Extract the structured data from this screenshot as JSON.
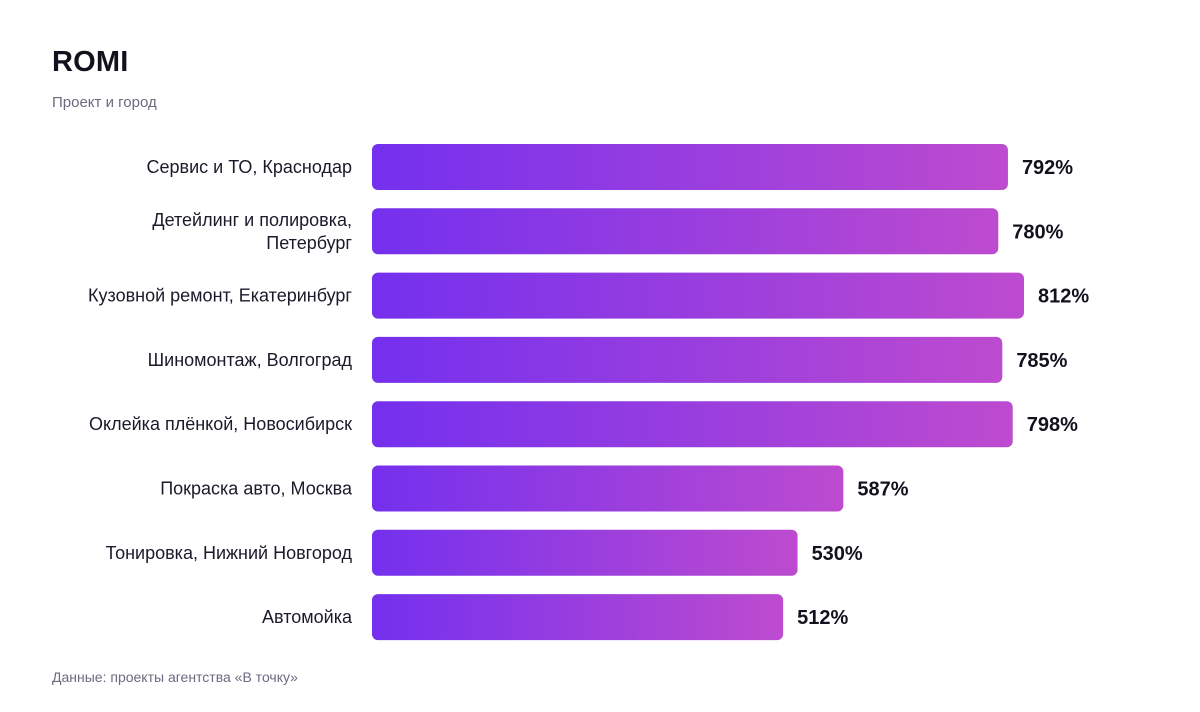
{
  "chart_data": {
    "type": "bar",
    "orientation": "horizontal",
    "title": "ROMI",
    "subtitle": "Проект и город",
    "source": "Данные: проекты агентства «В точку»",
    "categories": [
      "Сервис и ТО, Краснодар",
      "Детейлинг и полировка, Петербург",
      "Кузовной ремонт, Екатеринбург",
      "Шиномонтаж, Волгоград",
      "Оклейка плёнкой, Новосибирск",
      "Покраска авто, Москва",
      "Тонировка, Нижний Новгород",
      "Автомойка"
    ],
    "category_lines": [
      [
        "Сервис и ТО, Краснодар"
      ],
      [
        "Детейлинг и полировка,",
        "Петербург"
      ],
      [
        "Кузовной ремонт, Екатеринбург"
      ],
      [
        "Шиномонтаж, Волгоград"
      ],
      [
        "Оклейка плёнкой, Новосибирск"
      ],
      [
        "Покраска авто, Москва"
      ],
      [
        "Тонировка, Нижний Новгород"
      ],
      [
        "Автомойка"
      ]
    ],
    "values": [
      792,
      780,
      812,
      785,
      798,
      587,
      530,
      512
    ],
    "value_labels": [
      "792%",
      "780%",
      "812%",
      "785%",
      "798%",
      "587%",
      "530%",
      "512%"
    ],
    "unit": "%",
    "grid": false,
    "legend": "none",
    "colors": {
      "bar_start": "#7430ee",
      "bar_end": "#bd4bcf",
      "text": "#12121f",
      "muted": "#6b6b80"
    }
  }
}
